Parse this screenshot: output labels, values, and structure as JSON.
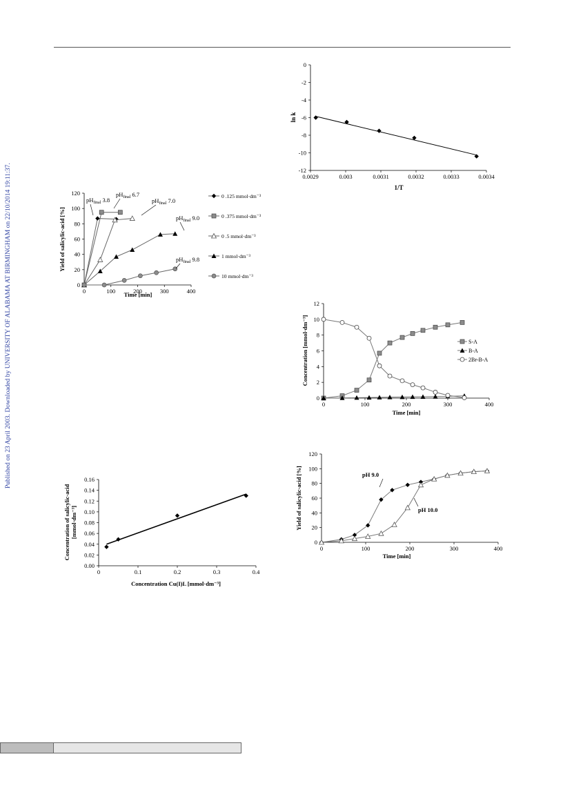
{
  "sidebar": {
    "watermark": "Published on 23 April 2003. Downloaded by UNIVERSITY OF ALABAMA AT BIRMINGHAM on 22/10/2014 19:11:37."
  },
  "chart_data": [
    {
      "id": "arrhenius",
      "type": "scatter",
      "xlabel": "1/T",
      "ylabel": "ln k",
      "xlim": [
        0.0029,
        0.0034
      ],
      "ylim": [
        -12,
        0
      ],
      "xticks": [
        "0.0029",
        "0.003",
        "0.0031",
        "0.0032",
        "0.0033",
        "0.0034"
      ],
      "yticks": [
        "0",
        "-2",
        "-4",
        "-6",
        "-8",
        "-10",
        "-12"
      ],
      "points": [
        {
          "x": 0.002915,
          "y": -6.0
        },
        {
          "x": 0.003003,
          "y": -6.5
        },
        {
          "x": 0.003095,
          "y": -7.5
        },
        {
          "x": 0.003195,
          "y": -8.3
        },
        {
          "x": 0.003372,
          "y": -10.4
        }
      ],
      "trendline": [
        {
          "x": 0.002915,
          "y": -5.85
        },
        {
          "x": 0.003372,
          "y": -10.25
        }
      ]
    },
    {
      "id": "yield-concentration",
      "type": "line",
      "xlabel": "Time [min]",
      "ylabel": "Yield of salicylic-acid [%]",
      "xlim": [
        0,
        400
      ],
      "ylim": [
        0,
        120
      ],
      "xticks": [
        "0",
        "100",
        "200",
        "300",
        "400"
      ],
      "yticks": [
        "0",
        "20",
        "40",
        "60",
        "80",
        "100",
        "120"
      ],
      "legend": [
        "0 .125 mmol·dm⁻³",
        "0 .375 mmol·dm⁻³",
        "0 .5 mmol·dm⁻³",
        "1 mmol·dm⁻³",
        "10 mmol·dm⁻³"
      ],
      "series": [
        {
          "name": "0 .125 mmol·dm⁻³",
          "marker": "diamond",
          "points": [
            [
              0,
              0
            ],
            [
              50,
              87
            ],
            [
              120,
              86
            ]
          ]
        },
        {
          "name": "0 .375 mmol·dm⁻³",
          "marker": "square",
          "points": [
            [
              0,
              0
            ],
            [
              65,
              95
            ],
            [
              135,
              95
            ]
          ]
        },
        {
          "name": "0 .5 mmol·dm⁻³",
          "marker": "triangle-open",
          "points": [
            [
              0,
              0
            ],
            [
              60,
              33
            ],
            [
              115,
              85
            ],
            [
              180,
              87
            ]
          ]
        },
        {
          "name": "1 mmol·dm⁻³",
          "marker": "triangle-filled",
          "points": [
            [
              0,
              0
            ],
            [
              60,
              18
            ],
            [
              120,
              37
            ],
            [
              180,
              46
            ],
            [
              285,
              66
            ],
            [
              340,
              67
            ]
          ]
        },
        {
          "name": "10 mmol·dm⁻³",
          "marker": "circle-filled",
          "points": [
            [
              0,
              0
            ],
            [
              75,
              0
            ],
            [
              150,
              6
            ],
            [
              210,
              12
            ],
            [
              270,
              16
            ],
            [
              340,
              21
            ]
          ]
        }
      ],
      "annotations": [
        {
          "label": "pH",
          "sub": "final",
          "value": "3.8"
        },
        {
          "label": "pH",
          "sub": "final",
          "value": "6.7"
        },
        {
          "label": "pH",
          "sub": "final",
          "value": "7.0"
        },
        {
          "label": "pH",
          "sub": "final",
          "value": "9.0"
        },
        {
          "label": "pH",
          "sub": "final",
          "value": "9.8"
        }
      ]
    },
    {
      "id": "concentration-time",
      "type": "line",
      "xlabel": "Time [min]",
      "ylabel": "Concentration [mmol·dm⁻³]",
      "xlim": [
        0,
        400
      ],
      "ylim": [
        0,
        12
      ],
      "xticks": [
        "0",
        "100",
        "200",
        "300",
        "400"
      ],
      "yticks": [
        "0",
        "2",
        "4",
        "6",
        "8",
        "10",
        "12"
      ],
      "legend": [
        "S-A",
        "B-A",
        "2Br-B-A"
      ],
      "series": [
        {
          "name": "S-A",
          "marker": "square",
          "points": [
            [
              0,
              0
            ],
            [
              45,
              0.3
            ],
            [
              80,
              1.0
            ],
            [
              110,
              2.3
            ],
            [
              135,
              5.7
            ],
            [
              160,
              7.0
            ],
            [
              190,
              7.7
            ],
            [
              215,
              8.2
            ],
            [
              240,
              8.6
            ],
            [
              270,
              9.0
            ],
            [
              300,
              9.3
            ],
            [
              335,
              9.6
            ]
          ]
        },
        {
          "name": "B-A",
          "marker": "triangle-filled",
          "points": [
            [
              0,
              0
            ],
            [
              45,
              0.02
            ],
            [
              80,
              0.05
            ],
            [
              110,
              0.08
            ],
            [
              135,
              0.1
            ],
            [
              160,
              0.12
            ],
            [
              190,
              0.14
            ],
            [
              215,
              0.16
            ],
            [
              240,
              0.18
            ],
            [
              270,
              0.2
            ],
            [
              300,
              0.22
            ],
            [
              340,
              0.3
            ]
          ]
        },
        {
          "name": "2Br-B-A",
          "marker": "circle-open",
          "points": [
            [
              0,
              10
            ],
            [
              45,
              9.6
            ],
            [
              80,
              9.0
            ],
            [
              110,
              7.6
            ],
            [
              135,
              4.1
            ],
            [
              160,
              2.8
            ],
            [
              190,
              2.2
            ],
            [
              215,
              1.7
            ],
            [
              240,
              1.3
            ],
            [
              270,
              0.75
            ],
            [
              300,
              0.35
            ],
            [
              340,
              0.05
            ]
          ]
        }
      ]
    },
    {
      "id": "salicylic-cu",
      "type": "scatter",
      "xlabel": "Concentration Cu(I)L [mmol·dm⁻³]",
      "ylabel_line1": "Concentration of salicylic-acid",
      "ylabel_line2": "[mmol·dm⁻³]",
      "xlim": [
        0,
        0.4
      ],
      "ylim": [
        0,
        0.16
      ],
      "xticks": [
        "0",
        "0.1",
        "0.2",
        "0.3",
        "0.4"
      ],
      "yticks": [
        "0.00",
        "0.02",
        "0.04",
        "0.06",
        "0.08",
        "0.10",
        "0.12",
        "0.14",
        "0.16"
      ],
      "points": [
        {
          "x": 0.02,
          "y": 0.035
        },
        {
          "x": 0.05,
          "y": 0.049
        },
        {
          "x": 0.2,
          "y": 0.093
        },
        {
          "x": 0.375,
          "y": 0.13
        }
      ],
      "trendline": [
        {
          "x": 0.02,
          "y": 0.04
        },
        {
          "x": 0.375,
          "y": 0.133
        }
      ]
    },
    {
      "id": "yield-ph",
      "type": "line",
      "xlabel": "Time [min]",
      "ylabel": "Yield of salicylic-acid [%]",
      "xlim": [
        0,
        400
      ],
      "ylim": [
        0,
        120
      ],
      "xticks": [
        "0",
        "100",
        "200",
        "300",
        "400"
      ],
      "yticks": [
        "0",
        "20",
        "40",
        "60",
        "80",
        "100",
        "120"
      ],
      "series": [
        {
          "name": "pH 9.0",
          "marker": "diamond",
          "points": [
            [
              0,
              0
            ],
            [
              45,
              4
            ],
            [
              75,
              10
            ],
            [
              105,
              23
            ],
            [
              135,
              58
            ],
            [
              160,
              71
            ],
            [
              195,
              78
            ],
            [
              225,
              82
            ],
            [
              255,
              86
            ],
            [
              285,
              91
            ],
            [
              315,
              94
            ],
            [
              345,
              96
            ],
            [
              375,
              97
            ]
          ]
        },
        {
          "name": "pH 10.0",
          "marker": "triangle-open",
          "points": [
            [
              0,
              0
            ],
            [
              45,
              2
            ],
            [
              75,
              5
            ],
            [
              105,
              8
            ],
            [
              135,
              12
            ],
            [
              165,
              24
            ],
            [
              195,
              47
            ],
            [
              225,
              78
            ],
            [
              255,
              86
            ],
            [
              285,
              91
            ],
            [
              315,
              94
            ],
            [
              345,
              96
            ],
            [
              375,
              97
            ]
          ]
        }
      ],
      "annotations": [
        {
          "value": "pH 9.0"
        },
        {
          "value": "pH 10.0"
        }
      ]
    }
  ]
}
